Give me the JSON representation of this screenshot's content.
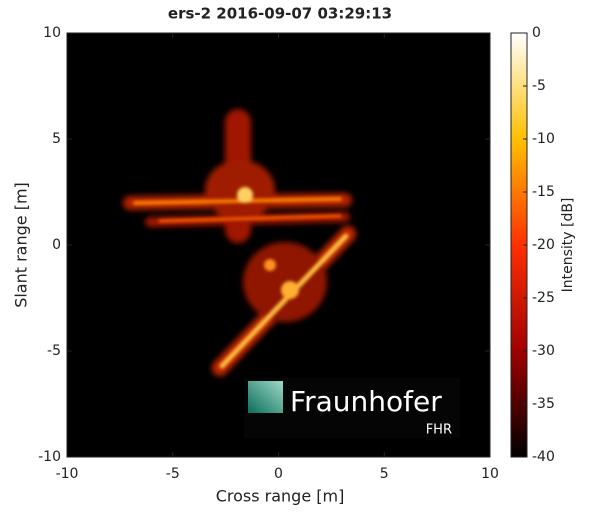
{
  "chart_data": {
    "type": "heatmap",
    "title": "ers-2 2016-09-07 03:29:13",
    "xlabel": "Cross range [m]",
    "ylabel": "Slant range [m]",
    "xlim": [
      -10,
      10
    ],
    "ylim": [
      -10,
      10
    ],
    "xticks": [
      -10,
      -5,
      0,
      5,
      10
    ],
    "yticks": [
      -10,
      -5,
      0,
      5,
      10
    ],
    "colorbar": {
      "label": "Intensity [dB]",
      "lim": [
        -40,
        0
      ],
      "ticks": [
        0,
        -5,
        -10,
        -15,
        -20,
        -25,
        -30,
        -35,
        -40
      ],
      "colormap": [
        "#000000",
        "#a00000",
        "#ff3000",
        "#ffc000",
        "#ffffff"
      ]
    }
  },
  "logo": {
    "name": "Fraunhofer",
    "unit": "FHR"
  }
}
